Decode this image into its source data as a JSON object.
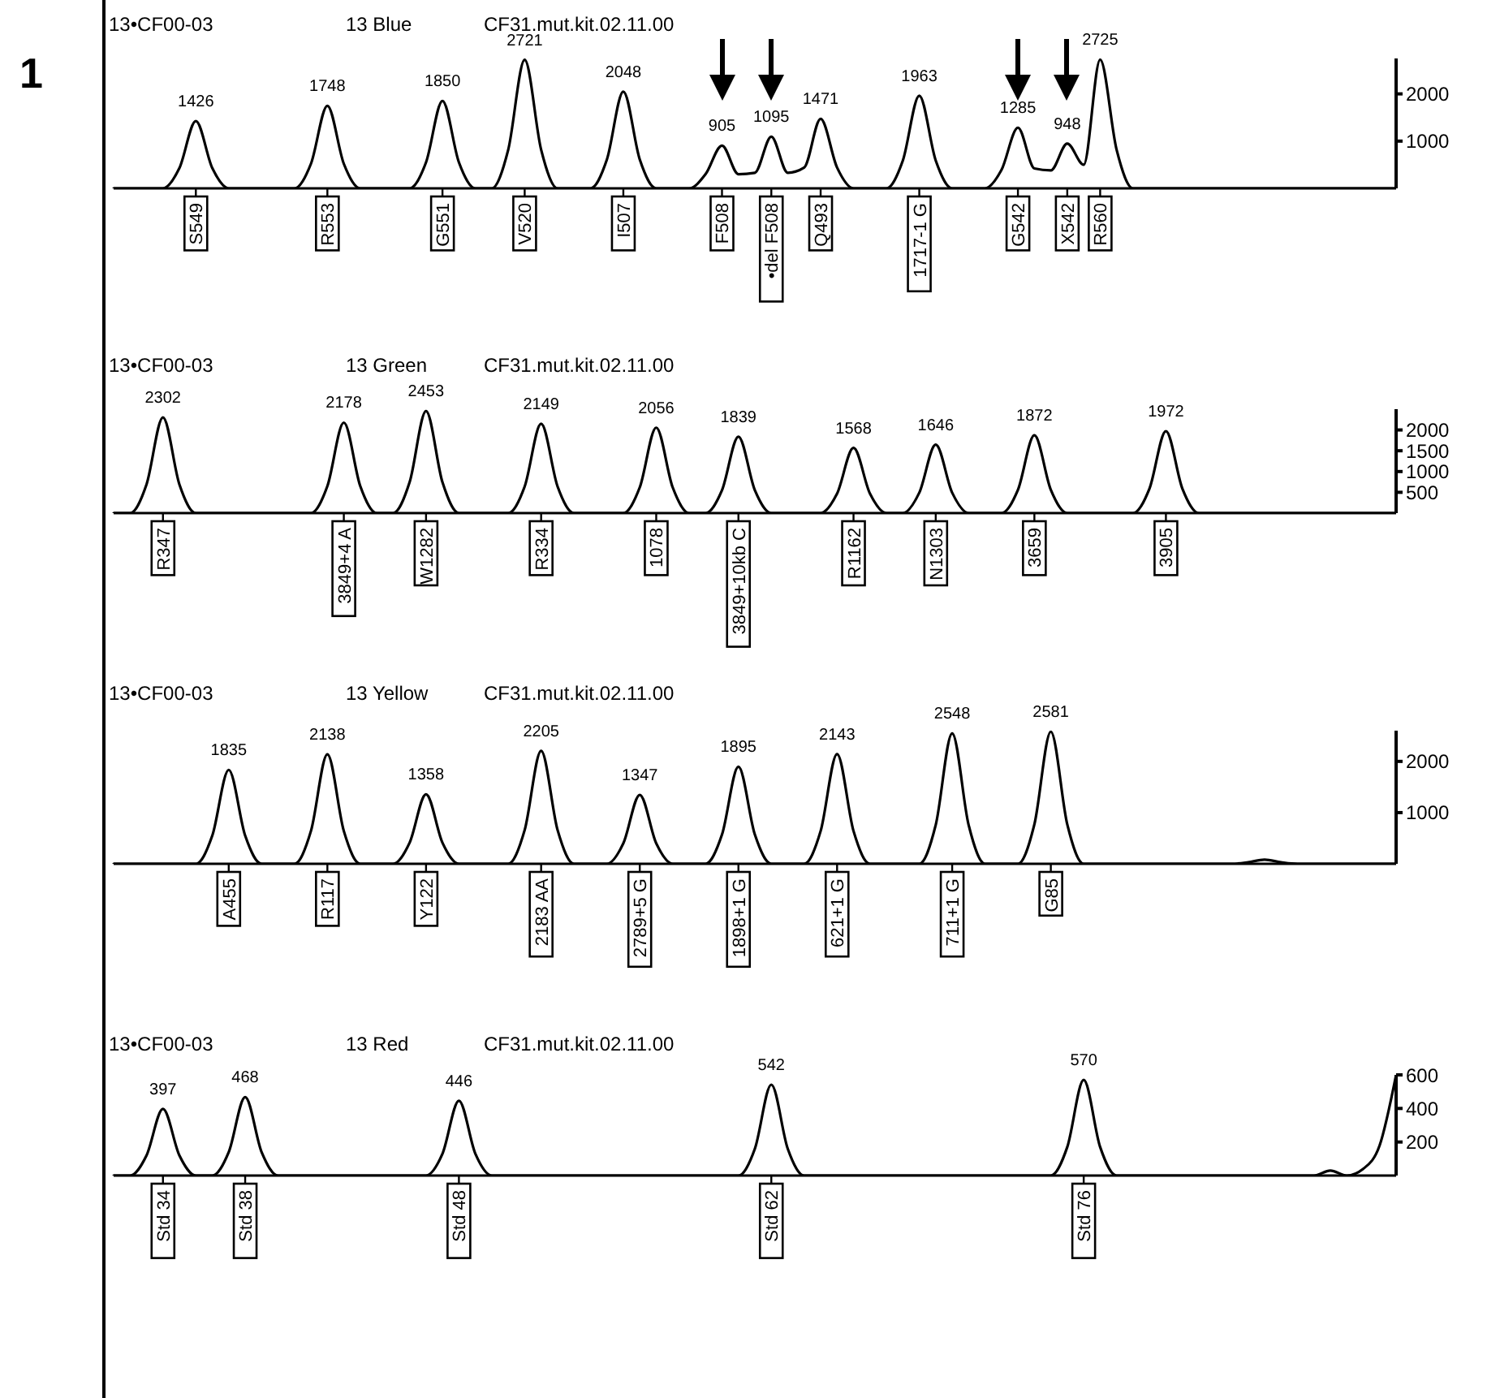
{
  "chart_data": [
    {
      "type": "line",
      "title": "13•CF00-03",
      "subtitle": "13 Blue",
      "annotations": [
        "1",
        "CF31.mut.kit.02.11.00"
      ],
      "color": "#000000",
      "marker": "none",
      "line_style": "solid",
      "ylim": [
        0,
        2750
      ],
      "yticks": [
        1000,
        2000
      ],
      "categories": [
        null,
        null,
        null,
        null,
        null,
        "S549",
        null,
        null,
        null,
        null,
        null,
        null,
        null,
        "R553",
        null,
        null,
        null,
        null,
        null,
        null,
        "G551",
        null,
        null,
        null,
        null,
        "V520",
        null,
        null,
        null,
        null,
        null,
        "I507",
        null,
        null,
        null,
        null,
        null,
        "F508",
        null,
        null,
        "•del F508",
        null,
        null,
        "Q493",
        null,
        null,
        null,
        null,
        null,
        "1717-1 G",
        null,
        null,
        null,
        null,
        null,
        "G542",
        null,
        null,
        "X542",
        null,
        "R560",
        null,
        null,
        null,
        null,
        null,
        null,
        null,
        null,
        null,
        null,
        null,
        null,
        null,
        null,
        null,
        null,
        null,
        null
      ],
      "values": [
        0,
        0,
        0,
        0,
        430,
        1426,
        430,
        0,
        0,
        0,
        0,
        0,
        520,
        1748,
        520,
        0,
        0,
        0,
        0,
        550,
        1850,
        550,
        0,
        0,
        820,
        2721,
        820,
        0,
        0,
        0,
        610,
        2048,
        610,
        0,
        0,
        0,
        300,
        905,
        300,
        330,
        1095,
        330,
        440,
        1471,
        440,
        0,
        0,
        0,
        590,
        1963,
        590,
        0,
        0,
        0,
        390,
        1285,
        420,
        380,
        948,
        500,
        2725,
        820,
        0,
        0,
        0,
        0,
        0,
        0,
        0,
        0,
        0,
        0,
        0,
        0,
        0,
        0,
        0,
        0,
        0
      ],
      "value_labels": [
        null,
        null,
        null,
        null,
        null,
        "1426",
        null,
        null,
        null,
        null,
        null,
        null,
        null,
        "1748",
        null,
        null,
        null,
        null,
        null,
        null,
        "1850",
        null,
        null,
        null,
        null,
        "2721",
        null,
        null,
        null,
        null,
        null,
        "2048",
        null,
        null,
        null,
        null,
        null,
        "905",
        null,
        null,
        "1095",
        null,
        null,
        "1471",
        null,
        null,
        null,
        null,
        null,
        "1963",
        null,
        null,
        null,
        null,
        null,
        "1285",
        null,
        null,
        "948",
        null,
        "2725",
        null,
        null,
        null,
        null,
        null,
        null,
        null,
        null,
        null,
        null,
        null,
        null,
        null,
        null,
        null,
        null,
        null,
        null
      ]
    },
    {
      "type": "line",
      "title": "13•CF00-03",
      "subtitle": "13 Green",
      "annotations": [
        "CF31.mut.kit.02.11.00"
      ],
      "color": "#000000",
      "marker": "none",
      "line_style": "solid",
      "ylim": [
        0,
        2500
      ],
      "yticks": [
        500,
        1000,
        1500,
        2000
      ],
      "categories": [
        null,
        null,
        null,
        "R347",
        null,
        null,
        null,
        null,
        null,
        null,
        null,
        null,
        null,
        null,
        "3849+4 A",
        null,
        null,
        null,
        null,
        "W1282",
        null,
        null,
        null,
        null,
        null,
        null,
        "R334",
        null,
        null,
        null,
        null,
        null,
        null,
        "1078",
        null,
        null,
        null,
        null,
        "3849+10kb C",
        null,
        null,
        null,
        null,
        null,
        null,
        "R1162",
        null,
        null,
        null,
        null,
        "N1303",
        null,
        null,
        null,
        null,
        null,
        "3659",
        null,
        null,
        null,
        null,
        null,
        null,
        null,
        "3905",
        null,
        null,
        null,
        null,
        null,
        null,
        null,
        null,
        null,
        null,
        null,
        null,
        null,
        null
      ],
      "values": [
        0,
        0,
        690,
        2302,
        690,
        0,
        0,
        0,
        0,
        0,
        0,
        0,
        0,
        650,
        2178,
        650,
        0,
        0,
        740,
        2453,
        740,
        0,
        0,
        0,
        0,
        640,
        2149,
        640,
        0,
        0,
        0,
        0,
        620,
        2056,
        620,
        0,
        0,
        550,
        1839,
        550,
        0,
        0,
        0,
        0,
        470,
        1568,
        470,
        0,
        0,
        490,
        1646,
        490,
        0,
        0,
        0,
        560,
        1872,
        560,
        0,
        0,
        0,
        0,
        0,
        590,
        1972,
        590,
        0,
        0,
        0,
        0,
        0,
        0,
        0,
        0,
        0,
        0,
        0,
        0,
        0
      ],
      "value_labels": [
        null,
        null,
        null,
        "2302",
        null,
        null,
        null,
        null,
        null,
        null,
        null,
        null,
        null,
        null,
        "2178",
        null,
        null,
        null,
        null,
        "2453",
        null,
        null,
        null,
        null,
        null,
        null,
        "2149",
        null,
        null,
        null,
        null,
        null,
        null,
        "2056",
        null,
        null,
        null,
        null,
        "1839",
        null,
        null,
        null,
        null,
        null,
        null,
        "1568",
        null,
        null,
        null,
        null,
        "1646",
        null,
        null,
        null,
        null,
        null,
        "1872",
        null,
        null,
        null,
        null,
        null,
        null,
        null,
        "1972",
        null,
        null,
        null,
        null,
        null,
        null,
        null,
        null,
        null,
        null,
        null,
        null,
        null,
        null
      ]
    },
    {
      "type": "line",
      "title": "13•CF00-03",
      "subtitle": "13 Yellow",
      "annotations": [
        "CF31.mut.kit.02.11.00"
      ],
      "color": "#000000",
      "marker": "none",
      "line_style": "solid",
      "ylim": [
        0,
        2600
      ],
      "yticks": [
        1000,
        2000
      ],
      "categories": [
        null,
        null,
        null,
        null,
        null,
        null,
        null,
        "A455",
        null,
        null,
        null,
        null,
        null,
        "R117",
        null,
        null,
        null,
        null,
        null,
        "Y122",
        null,
        null,
        null,
        null,
        null,
        null,
        "2183 AA",
        null,
        null,
        null,
        null,
        null,
        "2789+5 G",
        null,
        null,
        null,
        null,
        null,
        "1898+1 G",
        null,
        null,
        null,
        null,
        null,
        "621+1 G",
        null,
        null,
        null,
        null,
        null,
        null,
        "711+1 G",
        null,
        null,
        null,
        null,
        null,
        "G85",
        null,
        null,
        null,
        null,
        null,
        null,
        null,
        null,
        null,
        null,
        null,
        null,
        null,
        null,
        null,
        null,
        null,
        null,
        null,
        null,
        null
      ],
      "values": [
        0,
        0,
        0,
        0,
        0,
        0,
        550,
        1835,
        550,
        0,
        0,
        0,
        640,
        2138,
        640,
        0,
        0,
        0,
        410,
        1358,
        410,
        0,
        0,
        0,
        0,
        660,
        2205,
        660,
        0,
        0,
        0,
        400,
        1347,
        400,
        0,
        0,
        0,
        570,
        1895,
        570,
        0,
        0,
        0,
        640,
        2143,
        640,
        0,
        0,
        0,
        0,
        760,
        2548,
        760,
        0,
        0,
        0,
        770,
        2581,
        770,
        0,
        0,
        0,
        0,
        0,
        0,
        0,
        0,
        0,
        0,
        30,
        80,
        30,
        0,
        0,
        0,
        0,
        0,
        0,
        0
      ],
      "value_labels": [
        null,
        null,
        null,
        null,
        null,
        null,
        null,
        "1835",
        null,
        null,
        null,
        null,
        null,
        "2138",
        null,
        null,
        null,
        null,
        null,
        "1358",
        null,
        null,
        null,
        null,
        null,
        null,
        "2205",
        null,
        null,
        null,
        null,
        null,
        "1347",
        null,
        null,
        null,
        null,
        null,
        "1895",
        null,
        null,
        null,
        null,
        null,
        "2143",
        null,
        null,
        null,
        null,
        null,
        null,
        "2548",
        null,
        null,
        null,
        null,
        null,
        "2581",
        null,
        null,
        null,
        null,
        null,
        null,
        null,
        null,
        null,
        null,
        null,
        null,
        null,
        null,
        null,
        null,
        null,
        null,
        null,
        null,
        null
      ]
    },
    {
      "type": "line",
      "title": "13•CF00-03",
      "subtitle": "13 Red",
      "annotations": [
        "CF31.mut.kit.02.11.00"
      ],
      "color": "#000000",
      "marker": "none",
      "line_style": "solid",
      "ylim": [
        0,
        600
      ],
      "yticks": [
        200,
        400,
        600
      ],
      "categories": [
        null,
        null,
        null,
        "Std 34",
        null,
        null,
        null,
        null,
        "Std 38",
        null,
        null,
        null,
        null,
        null,
        null,
        null,
        null,
        null,
        null,
        null,
        null,
        "Std 48",
        null,
        null,
        null,
        null,
        null,
        null,
        null,
        null,
        null,
        null,
        null,
        null,
        null,
        null,
        null,
        null,
        null,
        null,
        "Std 62",
        null,
        null,
        null,
        null,
        null,
        null,
        null,
        null,
        null,
        null,
        null,
        null,
        null,
        null,
        null,
        null,
        null,
        null,
        "Std 76",
        null,
        null,
        null,
        null,
        null,
        null,
        null,
        null,
        null,
        null,
        null,
        null,
        null,
        null,
        null,
        null,
        null,
        null,
        null
      ],
      "values": [
        0,
        0,
        120,
        397,
        120,
        0,
        0,
        140,
        468,
        140,
        0,
        0,
        0,
        0,
        0,
        0,
        0,
        0,
        0,
        0,
        130,
        446,
        130,
        0,
        0,
        0,
        0,
        0,
        0,
        0,
        0,
        0,
        0,
        0,
        0,
        0,
        0,
        0,
        0,
        160,
        542,
        160,
        0,
        0,
        0,
        0,
        0,
        0,
        0,
        0,
        0,
        0,
        0,
        0,
        0,
        0,
        0,
        0,
        170,
        570,
        170,
        0,
        0,
        0,
        0,
        0,
        0,
        0,
        0,
        0,
        0,
        0,
        0,
        0,
        30,
        0,
        40,
        180,
        600
      ],
      "value_labels": [
        null,
        null,
        null,
        "397",
        null,
        null,
        null,
        null,
        "468",
        null,
        null,
        null,
        null,
        null,
        null,
        null,
        null,
        null,
        null,
        null,
        null,
        "446",
        null,
        null,
        null,
        null,
        null,
        null,
        null,
        null,
        null,
        null,
        null,
        null,
        null,
        null,
        null,
        null,
        null,
        null,
        "542",
        null,
        null,
        null,
        null,
        null,
        null,
        null,
        null,
        null,
        null,
        null,
        null,
        null,
        null,
        null,
        null,
        null,
        null,
        "570",
        null,
        null,
        null,
        null,
        null,
        null,
        null,
        null,
        null,
        null,
        null,
        null,
        null,
        null,
        null,
        null,
        null,
        null,
        null
      ]
    }
  ]
}
